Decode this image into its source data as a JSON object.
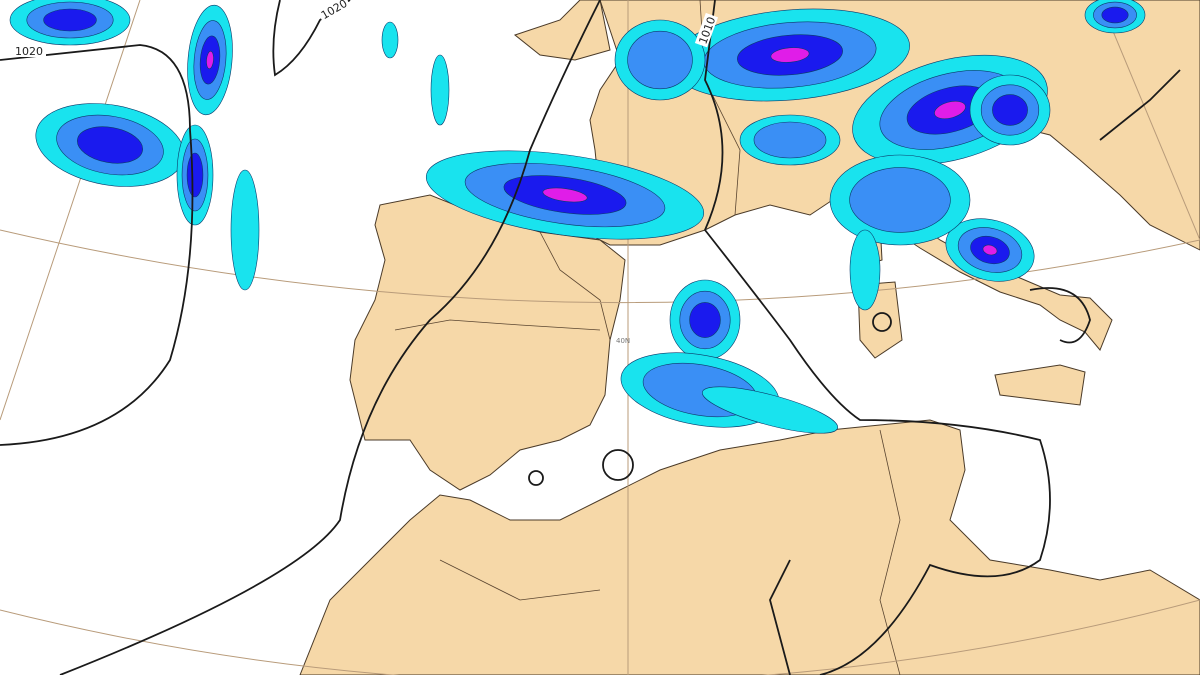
{
  "map": {
    "isobar_labels": [
      "1020",
      "1020",
      "1010"
    ],
    "graticule_label": "40N",
    "colors": {
      "land": "#f6d8a8",
      "sea": "#ffffff",
      "precip_light": "#19e3ee",
      "precip_moderate": "#3a8ff5",
      "precip_heavy": "#1a1aee",
      "precip_extreme": "#e01de8",
      "isobar": "#1a1a1a",
      "graticule": "#b89b7a"
    }
  }
}
